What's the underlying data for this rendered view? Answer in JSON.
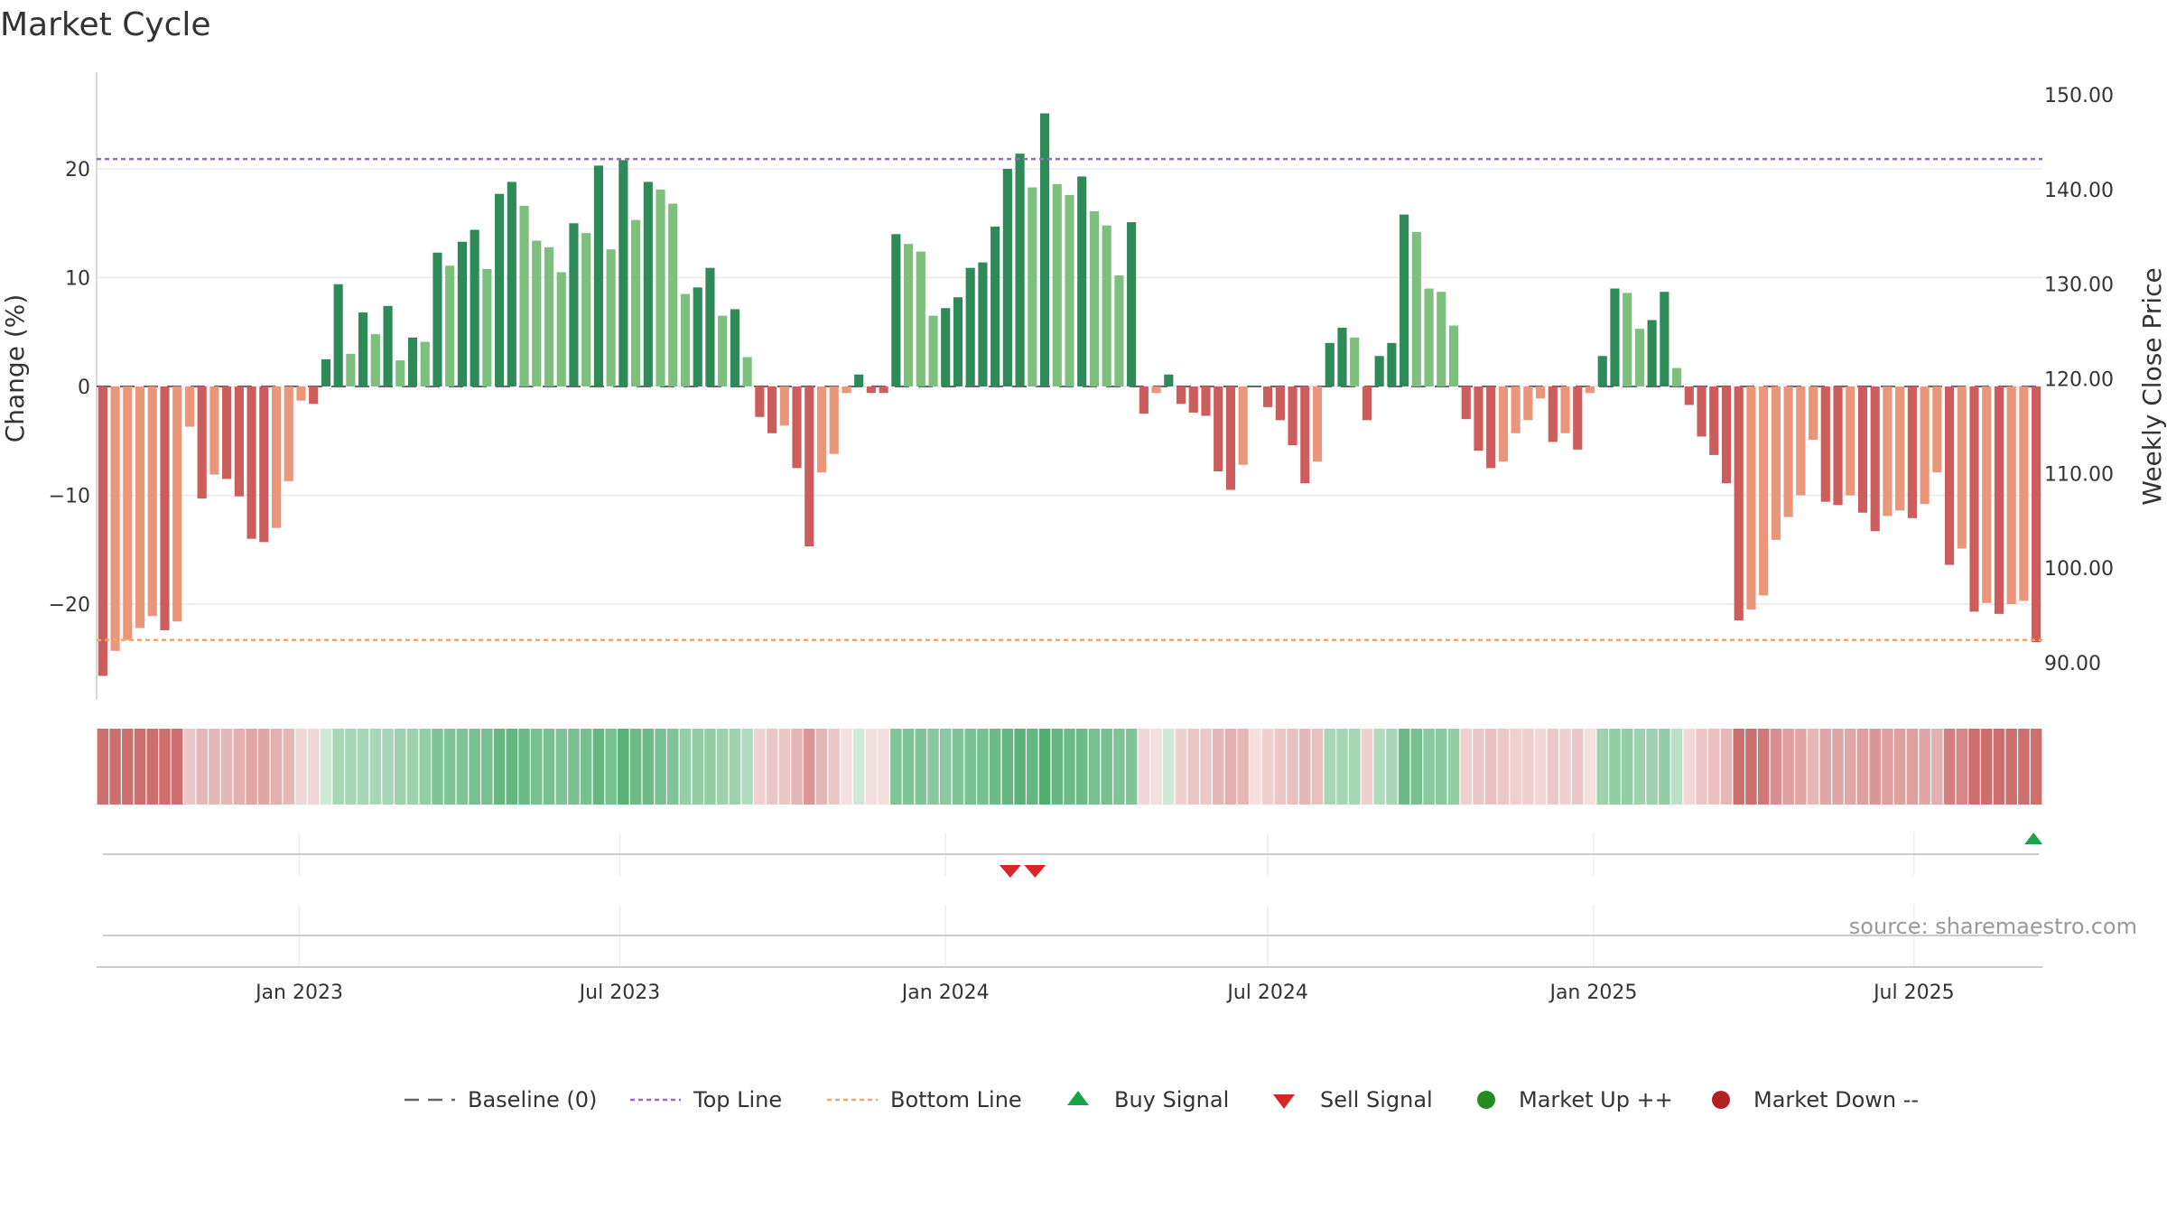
{
  "chart_data": {
    "type": "bar",
    "title": "Market Cycle",
    "ylabel": "Change (%)",
    "y2label": "Weekly Close Price",
    "source": "source: sharemaestro.com",
    "ylim": [
      -29,
      29
    ],
    "y_ticks": [
      -20,
      -10,
      0,
      10,
      20
    ],
    "y_tick_labels": [
      "−20",
      "−10",
      "0",
      "10",
      "20"
    ],
    "y2lim": [
      85.84,
      152.53
    ],
    "y2_ticks": [
      90,
      100,
      110,
      120,
      130,
      140,
      150
    ],
    "y2_tick_labels": [
      "90.00",
      "100.00",
      "110.00",
      "120.00",
      "130.00",
      "140.00",
      "150.00"
    ],
    "top_line": 20.9,
    "bottom_line": -23.3,
    "baseline": 0,
    "x_start": "2022-09-12",
    "week_days": 7,
    "x_ticks": [
      {
        "date": "2023-01-01",
        "label": "Jan 2023"
      },
      {
        "date": "2023-07-01",
        "label": "Jul 2023"
      },
      {
        "date": "2024-01-01",
        "label": "Jan 2024"
      },
      {
        "date": "2024-07-01",
        "label": "Jul 2024"
      },
      {
        "date": "2025-01-01",
        "label": "Jan 2025"
      },
      {
        "date": "2025-07-01",
        "label": "Jul 2025"
      }
    ],
    "values": [
      -26.6,
      -24.3,
      -23.3,
      -22.2,
      -21.1,
      -22.4,
      -21.6,
      -3.7,
      -10.3,
      -8.1,
      -8.5,
      -10.1,
      -14.0,
      -14.3,
      -13.0,
      -8.7,
      -1.3,
      -1.6,
      2.5,
      9.4,
      3.0,
      6.8,
      4.8,
      7.4,
      2.4,
      4.5,
      4.1,
      12.3,
      11.1,
      13.3,
      14.4,
      10.8,
      17.7,
      18.8,
      16.6,
      13.4,
      12.8,
      10.5,
      15.0,
      14.1,
      20.3,
      12.6,
      20.8,
      15.3,
      18.8,
      18.1,
      16.8,
      8.5,
      9.1,
      10.9,
      6.5,
      7.1,
      2.7,
      -2.8,
      -4.3,
      -3.6,
      -7.5,
      -14.7,
      -7.9,
      -6.2,
      -0.6,
      1.1,
      -0.6,
      -0.6,
      14.0,
      13.1,
      12.4,
      6.5,
      7.2,
      8.2,
      10.9,
      11.4,
      14.7,
      20.0,
      21.4,
      18.3,
      25.1,
      18.6,
      17.6,
      19.3,
      16.1,
      14.8,
      10.2,
      15.1,
      -2.5,
      -0.6,
      1.1,
      -1.6,
      -2.4,
      -2.7,
      -7.8,
      -9.5,
      -7.2,
      0,
      -1.9,
      -3.1,
      -5.4,
      -8.9,
      -6.9,
      4.0,
      5.4,
      4.5,
      -3.1,
      2.8,
      4.0,
      15.8,
      14.2,
      9.0,
      8.7,
      5.6,
      -3.0,
      -5.9,
      -7.5,
      -6.9,
      -4.3,
      -3.1,
      -1.1,
      -5.1,
      -4.3,
      -5.8,
      -0.6,
      2.8,
      9.0,
      8.6,
      5.3,
      6.1,
      8.7,
      1.7,
      -1.7,
      -4.6,
      -6.3,
      -8.9,
      -21.5,
      -20.5,
      -19.2,
      -14.1,
      -12.0,
      -10.0,
      -4.9,
      -10.6,
      -10.9,
      -10.0,
      -11.6,
      -13.3,
      -11.9,
      -11.4,
      -12.1,
      -10.8,
      -7.9,
      -16.4,
      -14.9,
      -20.7,
      -19.9,
      -20.9,
      -20.0,
      -19.7,
      -23.5
    ],
    "cycle_strength": [
      -0.9,
      -0.9,
      -0.9,
      -0.9,
      -0.9,
      -0.9,
      -0.9,
      -0.35,
      -0.45,
      -0.45,
      -0.45,
      -0.5,
      -0.55,
      -0.55,
      -0.5,
      -0.45,
      -0.25,
      -0.25,
      0.25,
      0.45,
      0.45,
      0.45,
      0.45,
      0.45,
      0.5,
      0.5,
      0.55,
      0.65,
      0.65,
      0.65,
      0.7,
      0.7,
      0.8,
      0.8,
      0.75,
      0.7,
      0.7,
      0.65,
      0.7,
      0.7,
      0.8,
      0.7,
      0.85,
      0.75,
      0.75,
      0.7,
      0.65,
      0.55,
      0.55,
      0.55,
      0.5,
      0.5,
      0.4,
      -0.3,
      -0.35,
      -0.35,
      -0.45,
      -0.65,
      -0.45,
      -0.35,
      -0.2,
      0.25,
      -0.2,
      -0.2,
      0.65,
      0.65,
      0.65,
      0.6,
      0.6,
      0.65,
      0.7,
      0.7,
      0.75,
      0.8,
      0.85,
      0.8,
      0.9,
      0.8,
      0.75,
      0.75,
      0.7,
      0.7,
      0.65,
      0.65,
      -0.25,
      -0.2,
      0.25,
      -0.3,
      -0.35,
      -0.35,
      -0.45,
      -0.5,
      -0.45,
      -0.2,
      -0.3,
      -0.35,
      -0.4,
      -0.45,
      -0.4,
      0.45,
      0.45,
      0.45,
      -0.3,
      0.4,
      0.45,
      0.75,
      0.7,
      0.6,
      0.6,
      0.55,
      -0.3,
      -0.35,
      -0.4,
      -0.35,
      -0.3,
      -0.3,
      -0.25,
      -0.35,
      -0.3,
      -0.35,
      -0.2,
      0.5,
      0.55,
      0.55,
      0.5,
      0.5,
      0.55,
      0.35,
      -0.25,
      -0.35,
      -0.4,
      -0.45,
      -0.9,
      -0.9,
      -0.85,
      -0.7,
      -0.6,
      -0.55,
      -0.45,
      -0.55,
      -0.55,
      -0.55,
      -0.6,
      -0.65,
      -0.6,
      -0.6,
      -0.6,
      -0.55,
      -0.5,
      -0.8,
      -0.75,
      -0.9,
      -0.9,
      -0.9,
      -0.9,
      -0.9,
      -0.9
    ],
    "sell_signals": [
      73,
      75
    ],
    "buy_signals": [
      156
    ],
    "colors": {
      "up_strong": "#2e8b57",
      "up_light": "#7dbf7d",
      "down_strong": "#cd5c5c",
      "down_light": "#e9967a",
      "top_line": "#9966cc",
      "bottom_line": "#f4a460",
      "baseline": "#666666",
      "buy": "#1aa34a",
      "sell": "#d62728",
      "market_up": "#228b22",
      "market_down": "#b22222"
    },
    "legend": [
      {
        "label": "Baseline (0)",
        "symbol": "dash",
        "color": "#666666"
      },
      {
        "label": "Top Line",
        "symbol": "dot",
        "color": "#9966cc"
      },
      {
        "label": "Bottom Line",
        "symbol": "dot",
        "color": "#f4a460"
      },
      {
        "label": "Buy Signal",
        "symbol": "tri-up",
        "color": "#1aa34a"
      },
      {
        "label": "Sell Signal",
        "symbol": "tri-down",
        "color": "#d62728"
      },
      {
        "label": "Market Up ++",
        "symbol": "circle",
        "color": "#228b22"
      },
      {
        "label": "Market Down --",
        "symbol": "circle",
        "color": "#b22222"
      }
    ]
  }
}
